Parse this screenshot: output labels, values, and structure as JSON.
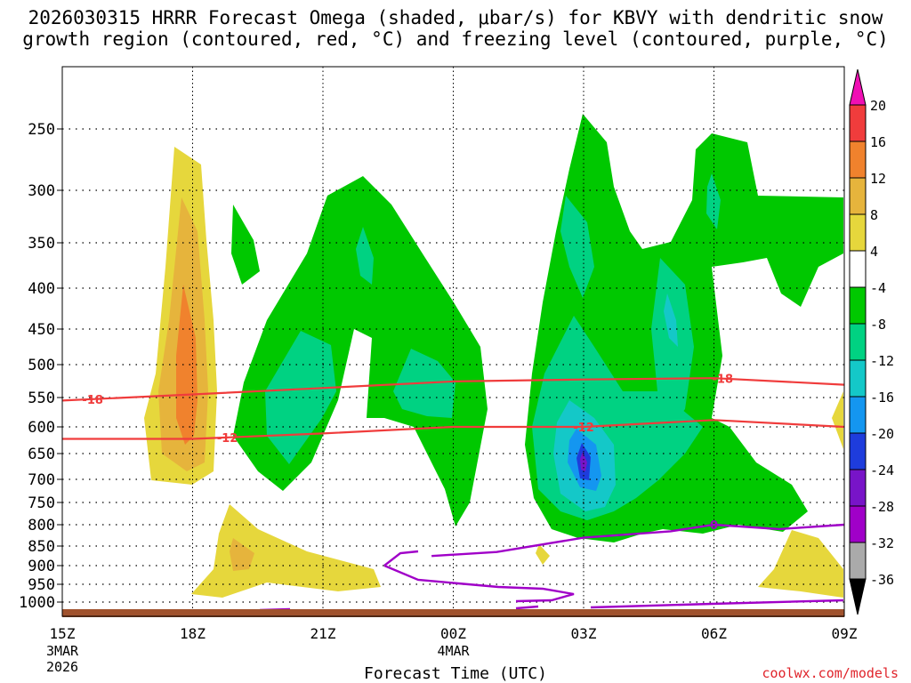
{
  "title": {
    "line1": "2026030315 HRRR Forecast Omega (shaded, μbar/s) for KBVY with dendritic snow",
    "line2": "growth region (contoured, red, °C) and freezing level (contoured, purple, °C)"
  },
  "credit": "coolwx.com/models",
  "chart_data": {
    "type": "heatmap",
    "title": "2026030315 HRRR Forecast Omega (shaded, μbar/s) for KBVY with dendritic snow growth region (contoured, red, °C) and freezing level (contoured, purple, °C)",
    "xlabel": "Forecast Time (UTC)",
    "ylabel": "",
    "x_ticks": [
      {
        "label": "15Z",
        "sub": [
          "3MAR",
          "2026"
        ],
        "hour": 0
      },
      {
        "label": "18Z",
        "sub": [],
        "hour": 3
      },
      {
        "label": "21Z",
        "sub": [],
        "hour": 6
      },
      {
        "label": "00Z",
        "sub": [
          "4MAR"
        ],
        "hour": 9
      },
      {
        "label": "03Z",
        "sub": [],
        "hour": 12
      },
      {
        "label": "06Z",
        "sub": [],
        "hour": 15
      },
      {
        "label": "09Z",
        "sub": [],
        "hour": 18
      }
    ],
    "xlim_hours": [
      0,
      18
    ],
    "y_ticks": [
      "250",
      "300",
      "350",
      "400",
      "450",
      "500",
      "550",
      "600",
      "650",
      "700",
      "750",
      "800",
      "850",
      "900",
      "950",
      "1000"
    ],
    "ylim_hpa": [
      1025,
      200
    ],
    "y_scale": "log",
    "grid": true,
    "colorbar": {
      "labels": [
        "20",
        "16",
        "12",
        "8",
        "4",
        "-4",
        "-8",
        "-12",
        "-16",
        "-20",
        "-24",
        "-28",
        "-32",
        "-36"
      ],
      "colors": [
        "#f00fb4",
        "#f03c3c",
        "#f0822d",
        "#e6b43c",
        "#e6d73c",
        "#ffffff",
        "#00c800",
        "#00d282",
        "#14c8c8",
        "#1496f0",
        "#1e3cdc",
        "#7814c8",
        "#a000c8",
        "#aaaaaa",
        "#000000"
      ]
    },
    "omega_centers": [
      {
        "hour": 3.0,
        "hpa": 540,
        "value": 13
      },
      {
        "hour": 3.0,
        "hpa": 880,
        "value": 10
      },
      {
        "hour": 6.0,
        "hpa": 520,
        "value": -12
      },
      {
        "hour": 8.0,
        "hpa": 320,
        "value": -10
      },
      {
        "hour": 10.0,
        "hpa": 540,
        "value": -12
      },
      {
        "hour": 12.0,
        "hpa": 650,
        "value": -24
      },
      {
        "hour": 12.0,
        "hpa": 350,
        "value": -12
      },
      {
        "hour": 14.7,
        "hpa": 450,
        "value": -16
      },
      {
        "hour": 15.0,
        "hpa": 320,
        "value": -12
      },
      {
        "hour": 17.5,
        "hpa": 910,
        "value": 4
      }
    ],
    "dgz_contours": [
      {
        "label": "-18",
        "points": [
          [
            0,
            555
          ],
          [
            3,
            545
          ],
          [
            6,
            535
          ],
          [
            9,
            525
          ],
          [
            12,
            522
          ],
          [
            15,
            520
          ],
          [
            18,
            530
          ]
        ]
      },
      {
        "label": "-12",
        "points": [
          [
            0,
            622
          ],
          [
            3,
            622
          ],
          [
            6,
            612
          ],
          [
            9,
            600
          ],
          [
            12,
            600
          ],
          [
            15,
            588
          ],
          [
            18,
            600
          ]
        ]
      }
    ],
    "freezing_level": {
      "label": "0",
      "points": [
        [
          8.5,
          875
        ],
        [
          10,
          865
        ],
        [
          12,
          830
        ],
        [
          14,
          815
        ],
        [
          15,
          800
        ],
        [
          16.5,
          810
        ],
        [
          18,
          800
        ]
      ]
    },
    "terrain_color": "#a0522d"
  }
}
